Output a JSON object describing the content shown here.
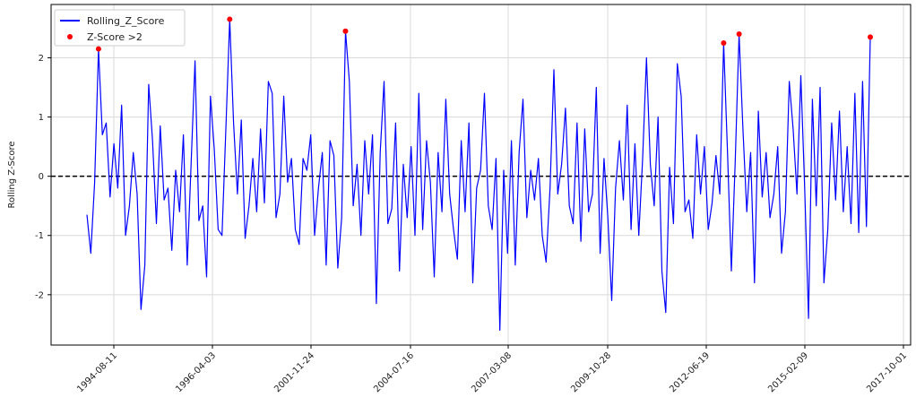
{
  "chart_data": {
    "type": "line",
    "title": "",
    "xlabel": "",
    "ylabel": "Rolling Z-Score",
    "ylim": [
      -2.85,
      2.9
    ],
    "yticks": [
      -2,
      -1,
      0,
      1,
      2
    ],
    "ytick_labels": [
      "-2",
      "-1",
      "0",
      "1",
      "2"
    ],
    "x_tick_labels": [
      "1994-08-11",
      "1996-04-03",
      "2001-11-24",
      "2004-07-16",
      "2007-03-08",
      "2009-10-28",
      "2012-06-19",
      "2015-02-09",
      "2017-10-01"
    ],
    "grid": true,
    "threshold_line": {
      "y": 0,
      "color": "#000000",
      "style": "dashed"
    },
    "legend": {
      "position": "top-left",
      "entries": [
        {
          "label": "Rolling_Z_Score",
          "color": "#0000ff",
          "kind": "line"
        },
        {
          "label": "Z-Score >2",
          "color": "#ff0000",
          "kind": "marker"
        }
      ]
    },
    "series": [
      {
        "name": "Rolling_Z_Score",
        "color": "#0000ff",
        "values": [
          -0.65,
          -1.3,
          -0.1,
          2.15,
          0.7,
          0.9,
          -0.35,
          0.55,
          -0.2,
          1.2,
          -1.0,
          -0.5,
          0.4,
          -0.3,
          -2.25,
          -1.5,
          1.55,
          0.6,
          -0.8,
          0.85,
          -0.4,
          -0.2,
          -1.25,
          0.1,
          -0.6,
          0.7,
          -1.5,
          0.2,
          1.95,
          -0.75,
          -0.5,
          -1.7,
          1.35,
          0.45,
          -0.9,
          -1.0,
          0.8,
          2.65,
          0.9,
          -0.3,
          0.95,
          -1.05,
          -0.5,
          0.3,
          -0.6,
          0.8,
          -0.45,
          1.6,
          1.4,
          -0.7,
          -0.3,
          1.35,
          -0.1,
          0.3,
          -0.9,
          -1.15,
          0.3,
          0.1,
          0.7,
          -1.0,
          -0.2,
          0.4,
          -1.5,
          0.6,
          0.35,
          -1.55,
          -0.7,
          2.45,
          1.6,
          -0.5,
          0.2,
          -1.0,
          0.6,
          -0.3,
          0.7,
          -2.15,
          0.4,
          1.6,
          -0.8,
          -0.55,
          0.9,
          -1.6,
          0.2,
          -0.7,
          0.5,
          -1.0,
          1.4,
          -0.9,
          0.6,
          -0.1,
          -1.7,
          0.4,
          -0.6,
          1.3,
          -0.3,
          -0.9,
          -1.4,
          0.6,
          -0.6,
          0.9,
          -1.8,
          -0.2,
          0.1,
          1.4,
          -0.5,
          -0.9,
          0.3,
          -2.6,
          0.1,
          -1.3,
          0.6,
          -1.5,
          0.4,
          1.3,
          -0.7,
          0.1,
          -0.4,
          0.3,
          -1.0,
          -1.45,
          -0.2,
          1.8,
          -0.3,
          0.2,
          1.15,
          -0.5,
          -0.8,
          0.9,
          -1.1,
          0.8,
          -0.6,
          -0.3,
          1.5,
          -1.3,
          0.3,
          -0.7,
          -2.1,
          -0.2,
          0.6,
          -0.4,
          1.2,
          -0.9,
          0.55,
          -1.0,
          0.3,
          2.0,
          0.2,
          -0.5,
          1.0,
          -1.6,
          -2.3,
          0.15,
          -0.8,
          1.9,
          1.35,
          -0.6,
          -0.4,
          -1.05,
          0.7,
          -0.3,
          0.5,
          -0.9,
          -0.45,
          0.35,
          -0.3,
          2.25,
          0.4,
          -1.6,
          0.25,
          2.4,
          0.8,
          -0.6,
          0.4,
          -1.8,
          1.1,
          -0.35,
          0.4,
          -0.7,
          -0.3,
          0.5,
          -1.3,
          -0.6,
          1.6,
          0.8,
          -0.3,
          1.7,
          -0.2,
          -2.4,
          1.3,
          -0.5,
          1.5,
          -1.8,
          -0.9,
          0.9,
          -0.4,
          1.1,
          -0.6,
          0.5,
          -0.8,
          1.4,
          -0.95,
          1.6,
          -0.85,
          2.35
        ]
      }
    ],
    "highlights": {
      "name": "Z-Score >2",
      "color": "#ff0000",
      "note": "points where the series exceeds 2"
    }
  }
}
